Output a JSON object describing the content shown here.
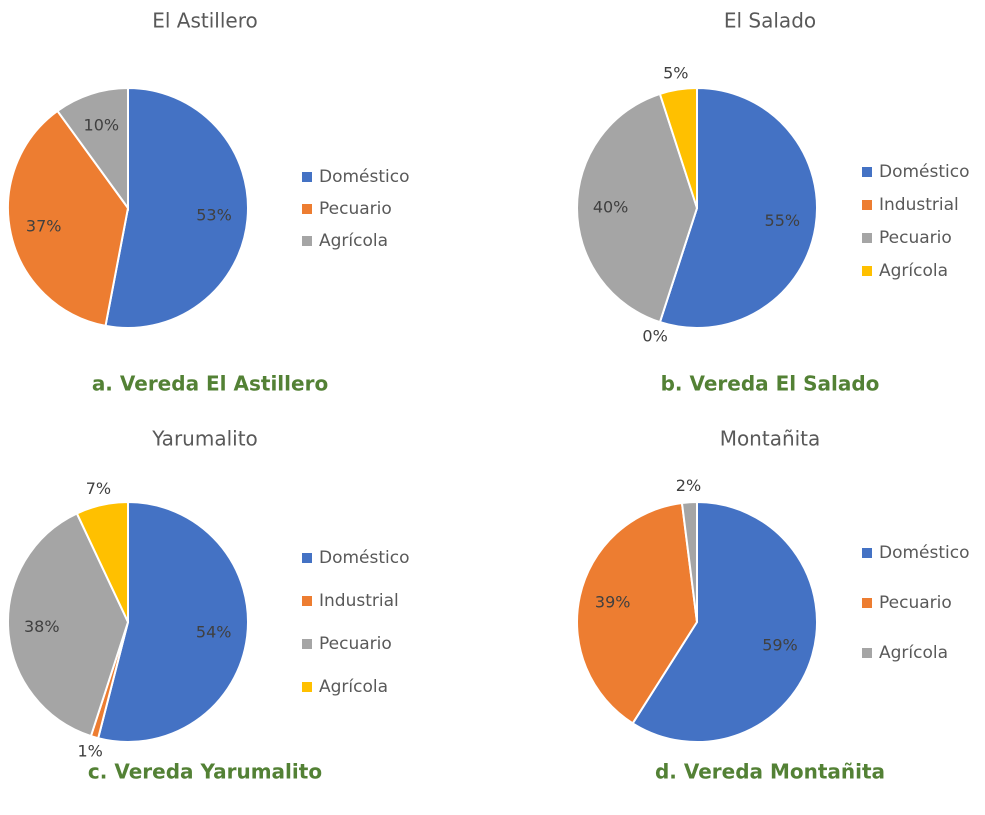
{
  "chart_data": [
    {
      "type": "pie",
      "title": "El Astillero",
      "caption": "a. Vereda El Astillero",
      "categories": [
        "Doméstico",
        "Pecuario",
        "Agrícola"
      ],
      "values": [
        53,
        37,
        10
      ],
      "value_labels": [
        "53%",
        "37%",
        "10%"
      ],
      "colors": [
        "#4472c4",
        "#ed7d31",
        "#a5a5a5"
      ]
    },
    {
      "type": "pie",
      "title": "El Salado",
      "caption": "b. Vereda El Salado",
      "categories": [
        "Doméstico",
        "Industrial",
        "Pecuario",
        "Agrícola"
      ],
      "values": [
        55,
        0,
        40,
        5
      ],
      "value_labels": [
        "55%",
        "0%",
        "40%",
        "5%"
      ],
      "colors": [
        "#4472c4",
        "#ed7d31",
        "#a5a5a5",
        "#ffc000"
      ]
    },
    {
      "type": "pie",
      "title": "Yarumalito",
      "caption": "c. Vereda Yarumalito",
      "categories": [
        "Doméstico",
        "Industrial",
        "Pecuario",
        "Agrícola"
      ],
      "values": [
        54,
        1,
        38,
        7
      ],
      "value_labels": [
        "54%",
        "1%",
        "38%",
        "7%"
      ],
      "colors": [
        "#4472c4",
        "#ed7d31",
        "#a5a5a5",
        "#ffc000"
      ]
    },
    {
      "type": "pie",
      "title": "Montañita",
      "caption": "d. Vereda Montañita",
      "categories": [
        "Doméstico",
        "Pecuario",
        "Agrícola"
      ],
      "values": [
        59,
        39,
        2
      ],
      "value_labels": [
        "59%",
        "39%",
        "2%"
      ],
      "colors": [
        "#4472c4",
        "#ed7d31",
        "#a5a5a5"
      ]
    }
  ]
}
